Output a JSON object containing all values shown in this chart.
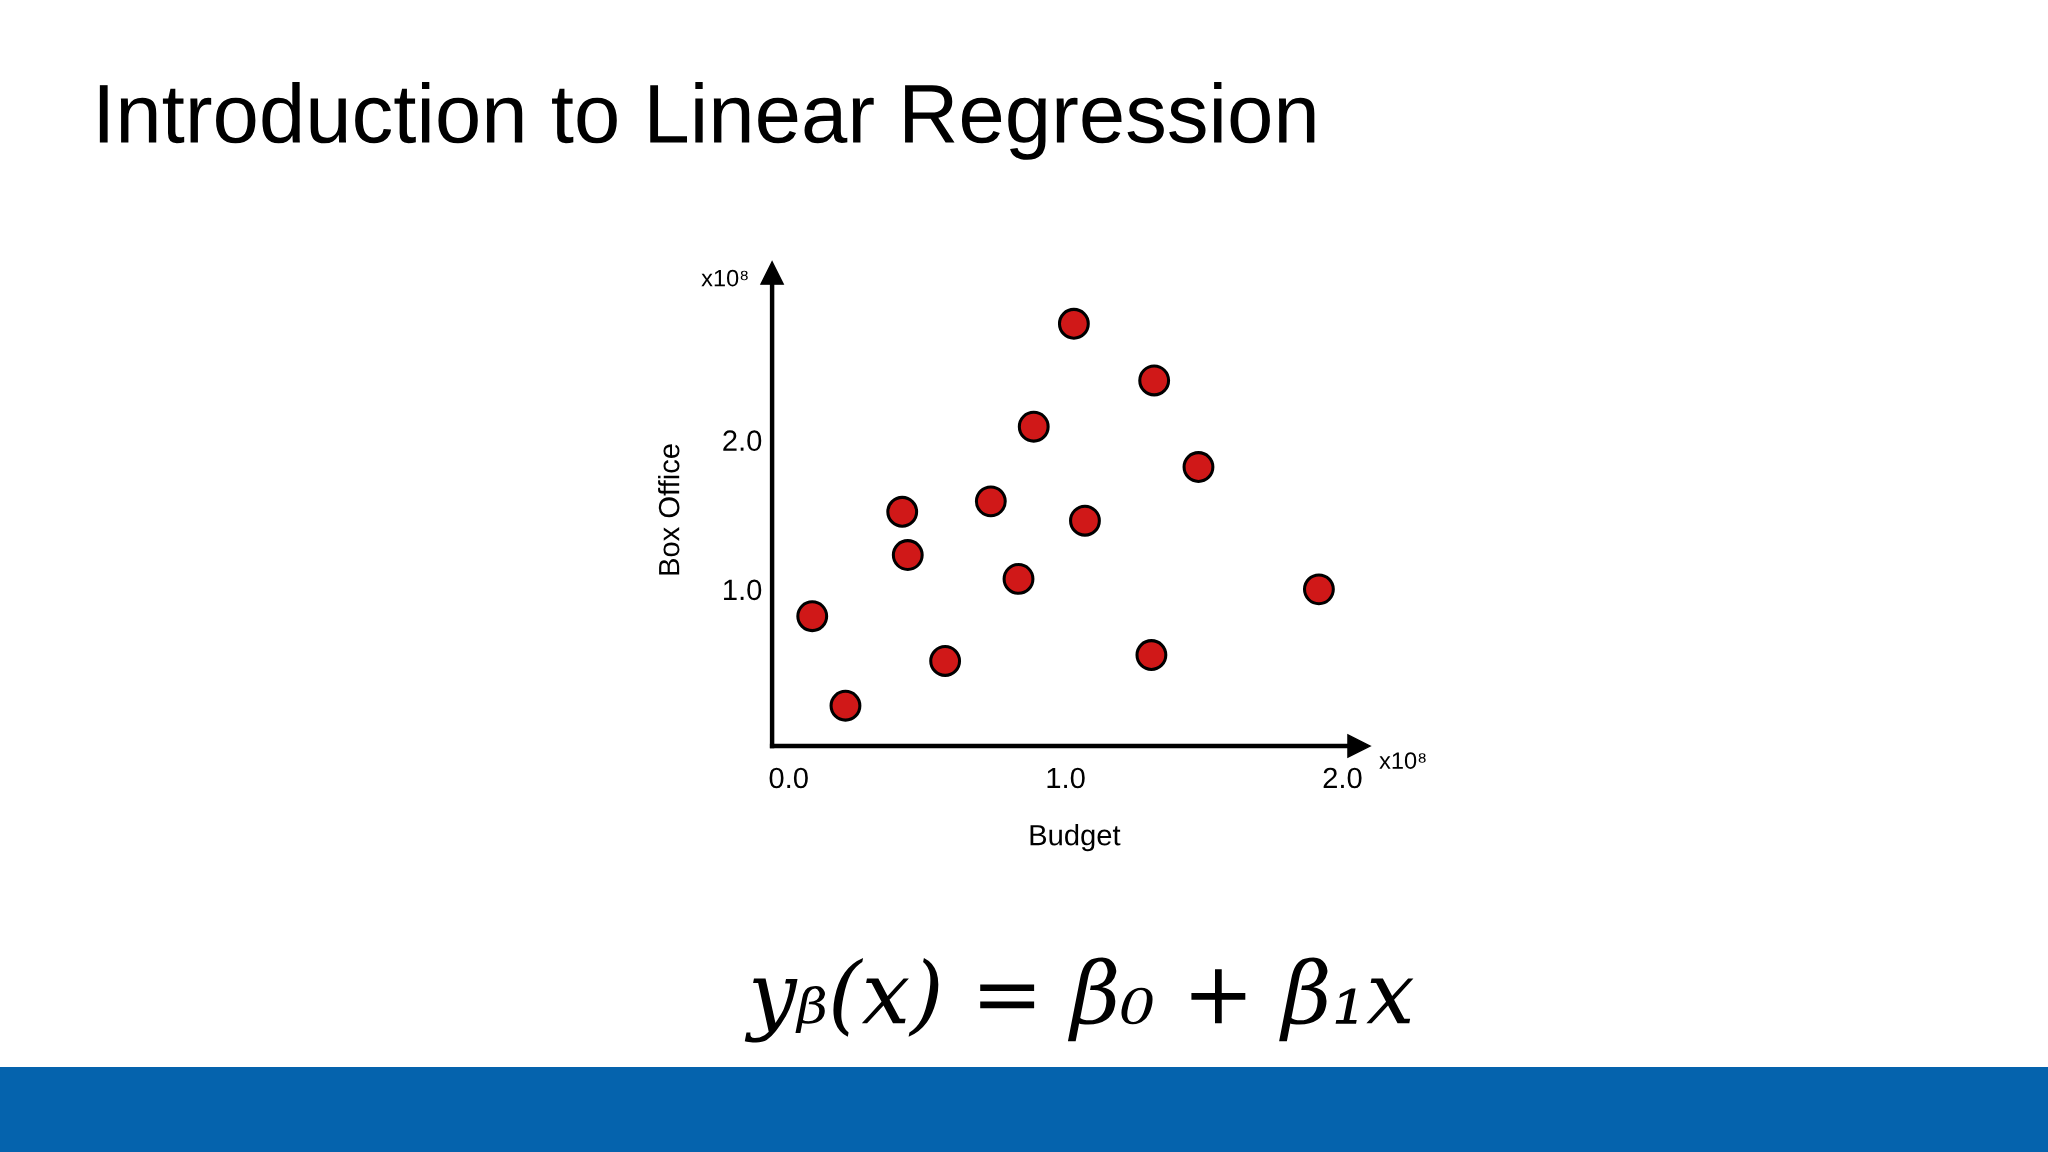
{
  "chart_data": {
    "type": "scatter",
    "title": "Introduction to Linear Regression",
    "xlabel": "Budget",
    "ylabel": "Box Office",
    "annotations": [
      "x10⁸",
      "x10⁸",
      "yᵦ(x) = β₀ + β₁x"
    ],
    "x": [
      0.085,
      0.205,
      0.41,
      0.43,
      0.565,
      0.73,
      0.83,
      0.885,
      1.03,
      1.07,
      1.31,
      1.32,
      1.48,
      1.915
    ],
    "series": [
      {
        "color": "#d01818",
        "values": [
          0.82,
          0.22,
          1.52,
          1.23,
          0.52,
          1.59,
          1.07,
          2.09,
          2.78,
          1.46,
          0.56,
          2.4,
          1.82,
          1.0
        ]
      }
    ],
    "xlim": [
      -0.06,
      2.06
    ],
    "ylim": [
      -0.05,
      3.12
    ],
    "xticks": [
      {
        "value": 0,
        "label": "0.0"
      },
      {
        "value": 1,
        "label": "1.0"
      },
      {
        "value": 2,
        "label": "2.0"
      }
    ],
    "yticks": [
      {
        "value": 1,
        "label": "1.0"
      },
      {
        "value": 2,
        "label": "2.0"
      }
    ],
    "marker": "circle"
  }
}
